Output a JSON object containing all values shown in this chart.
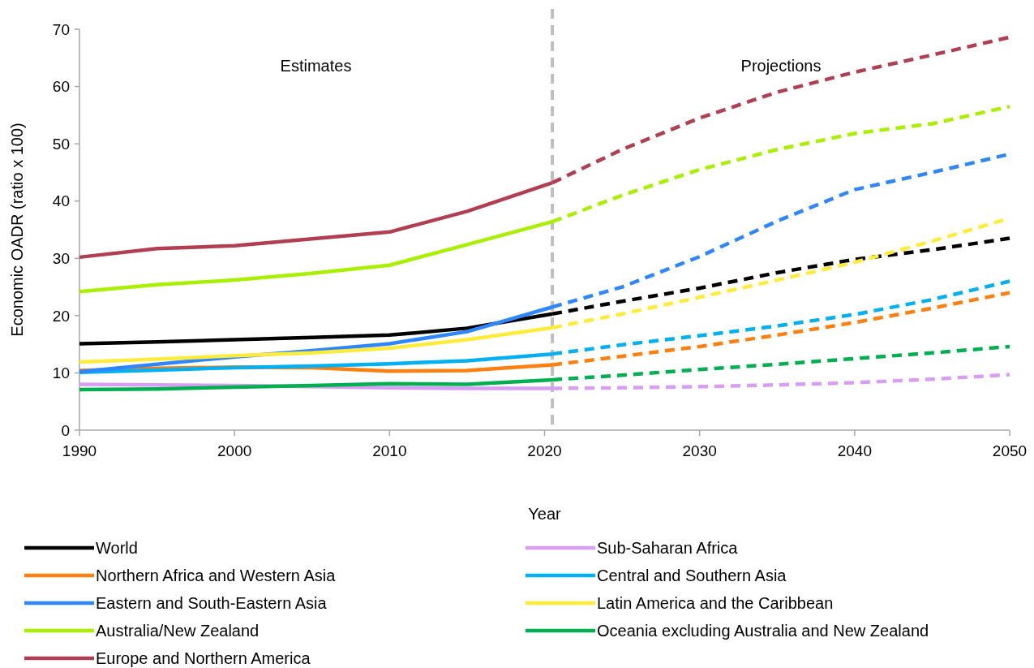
{
  "chart_data": {
    "type": "line",
    "xlabel": "Year",
    "ylabel": "Economic OADR (ratio x 100)",
    "xlim": [
      1990,
      2050
    ],
    "xticks": [
      1990,
      2000,
      2010,
      2020,
      2030,
      2040,
      2050
    ],
    "ylim": [
      0,
      70
    ],
    "yticks": [
      0,
      10,
      20,
      30,
      40,
      50,
      60,
      70
    ],
    "grid": false,
    "legend": "bottom",
    "marker": "none",
    "annotations": [
      "Estimates",
      "Projections"
    ],
    "ref_lines": [
      {
        "axis": "x",
        "value": 2020.5,
        "color": "#bfbfbf",
        "line_style": "dashed"
      }
    ],
    "series": [
      {
        "name": "World",
        "color": "#000000",
        "line_style": "solid",
        "x": [
          1990,
          1995,
          2000,
          2005,
          2010,
          2015,
          2020.5
        ],
        "values": [
          15.1,
          15.4,
          15.8,
          16.2,
          16.6,
          17.8,
          20.3
        ]
      },
      {
        "name": "Sub-Saharan Africa",
        "color": "#d89ef5",
        "line_style": "solid",
        "x": [
          1990,
          1995,
          2000,
          2005,
          2010,
          2015,
          2020.5
        ],
        "values": [
          8.0,
          7.9,
          7.8,
          7.6,
          7.4,
          7.3,
          7.3
        ]
      },
      {
        "name": "Northern Africa and Western Asia",
        "color": "#ff8010",
        "line_style": "solid",
        "x": [
          1990,
          1995,
          2000,
          2005,
          2010,
          2015,
          2020.5
        ],
        "values": [
          10.4,
          10.8,
          11.0,
          10.9,
          10.3,
          10.4,
          11.4
        ]
      },
      {
        "name": "Central and Southern Asia",
        "color": "#00b0f0",
        "line_style": "solid",
        "x": [
          1990,
          1995,
          2000,
          2005,
          2010,
          2015,
          2020.5
        ],
        "values": [
          10.1,
          10.5,
          10.9,
          11.2,
          11.6,
          12.1,
          13.3
        ]
      },
      {
        "name": "Eastern and South-Eastern Asia",
        "color": "#2f87ff",
        "line_style": "solid",
        "x": [
          1990,
          1995,
          2000,
          2005,
          2010,
          2015,
          2020.5
        ],
        "values": [
          10.2,
          11.5,
          12.8,
          13.9,
          15.1,
          17.2,
          21.5
        ]
      },
      {
        "name": "Latin America and the Caribbean",
        "color": "#ffec3a",
        "line_style": "solid",
        "x": [
          1990,
          1995,
          2000,
          2005,
          2010,
          2015,
          2020.5
        ],
        "values": [
          11.9,
          12.4,
          13.0,
          13.5,
          14.3,
          15.8,
          17.9
        ]
      },
      {
        "name": "Australia/New Zealand",
        "color": "#a8f000",
        "line_style": "solid",
        "x": [
          1990,
          1995,
          2000,
          2005,
          2010,
          2015,
          2020.5
        ],
        "values": [
          24.2,
          25.4,
          26.2,
          27.4,
          28.8,
          32.4,
          36.4
        ]
      },
      {
        "name": "Oceania excluding Australia and New Zealand",
        "color": "#00b050",
        "line_style": "solid",
        "x": [
          1990,
          1995,
          2000,
          2005,
          2010,
          2015,
          2020.5
        ],
        "values": [
          7.1,
          7.2,
          7.5,
          7.8,
          8.1,
          8.0,
          8.8
        ]
      },
      {
        "name": "Europe and Northern America",
        "color": "#b13f52",
        "line_style": "solid",
        "x": [
          1990,
          1995,
          2000,
          2005,
          2010,
          2015,
          2020.5
        ],
        "values": [
          30.2,
          31.7,
          32.2,
          33.4,
          34.6,
          38.2,
          43.2
        ]
      },
      {
        "color": "#000000",
        "line_style": "dashed",
        "x": [
          2020.5,
          2025,
          2030,
          2035,
          2040,
          2045,
          2050
        ],
        "values": [
          20.3,
          22.5,
          24.8,
          27.5,
          29.8,
          31.5,
          33.5
        ]
      },
      {
        "color": "#d89ef5",
        "line_style": "dashed",
        "x": [
          2020.5,
          2025,
          2030,
          2035,
          2040,
          2045,
          2050
        ],
        "values": [
          7.3,
          7.4,
          7.6,
          7.9,
          8.3,
          8.9,
          9.7
        ]
      },
      {
        "color": "#ff8010",
        "line_style": "dashed",
        "x": [
          2020.5,
          2025,
          2030,
          2035,
          2040,
          2045,
          2050
        ],
        "values": [
          11.4,
          12.9,
          14.6,
          16.6,
          18.8,
          21.3,
          24.0
        ]
      },
      {
        "color": "#00b0f0",
        "line_style": "dashed",
        "x": [
          2020.5,
          2025,
          2030,
          2035,
          2040,
          2045,
          2050
        ],
        "values": [
          13.3,
          14.9,
          16.5,
          18.2,
          20.2,
          22.8,
          26.0
        ]
      },
      {
        "color": "#2f87ff",
        "line_style": "dashed",
        "x": [
          2020.5,
          2025,
          2030,
          2035,
          2040,
          2045,
          2050
        ],
        "values": [
          21.5,
          25.0,
          30.3,
          36.5,
          42.0,
          45.0,
          48.2
        ]
      },
      {
        "color": "#ffec3a",
        "line_style": "dashed",
        "x": [
          2020.5,
          2025,
          2030,
          2035,
          2040,
          2045,
          2050
        ],
        "values": [
          17.9,
          20.3,
          23.2,
          26.2,
          29.3,
          33.0,
          37.0
        ]
      },
      {
        "color": "#a8f000",
        "line_style": "dashed",
        "x": [
          2020.5,
          2025,
          2030,
          2035,
          2040,
          2045,
          2050
        ],
        "values": [
          36.4,
          41.0,
          45.5,
          49.0,
          51.8,
          53.5,
          56.5
        ]
      },
      {
        "color": "#00b050",
        "line_style": "dashed",
        "x": [
          2020.5,
          2025,
          2030,
          2035,
          2040,
          2045,
          2050
        ],
        "values": [
          8.8,
          9.6,
          10.6,
          11.5,
          12.5,
          13.5,
          14.6
        ]
      },
      {
        "color": "#b13f52",
        "line_style": "dashed",
        "x": [
          2020.5,
          2025,
          2030,
          2035,
          2040,
          2045,
          2050
        ],
        "values": [
          43.2,
          49.0,
          54.5,
          59.0,
          62.5,
          65.5,
          68.6
        ]
      }
    ]
  }
}
